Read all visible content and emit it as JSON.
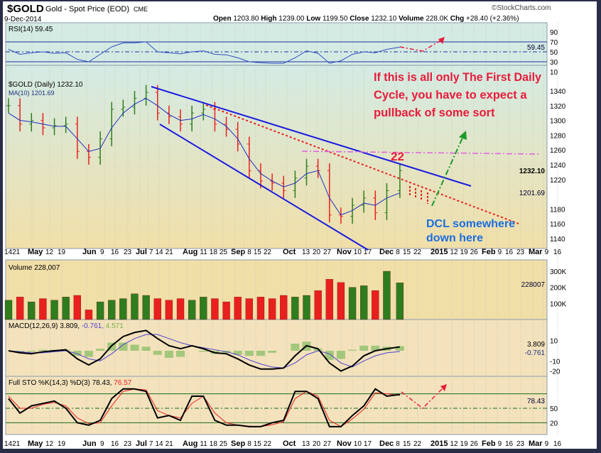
{
  "header": {
    "symbol": "$GOLD",
    "name": "Gold - Spot Price (EOD)",
    "exchange": "CME",
    "date": "9-Dec-2014",
    "brand": "©StockCharts.com",
    "open_label": "Open",
    "open": "1203.80",
    "high_label": "High",
    "high": "1239.00",
    "low_label": "Low",
    "low": "1199.50",
    "close_label": "Close",
    "close": "1232.10",
    "volume_label": "Volume",
    "volume": "228.0K",
    "chg_label": "Chg",
    "chg": "+28.40 (+2.36%)"
  },
  "chart_data": {
    "type": "line",
    "panels": {
      "rsi": {
        "label": "RSI(14) 59.45",
        "ticks": [
          90,
          70,
          50,
          30,
          10
        ],
        "last": "59.45",
        "ylim": [
          0,
          100
        ]
      },
      "price": {
        "label": "$GOLD (Daily) 1232.10",
        "ma_label": "MA(10) 1201.69",
        "ticks": [
          1340,
          1320,
          1300,
          1280,
          1260,
          1240,
          1220,
          1180,
          1160,
          1140
        ],
        "last": "1232.10",
        "ma_last": "1201.69",
        "ylim": [
          1125,
          1360
        ]
      },
      "volume": {
        "label": "Volume 228,007",
        "ticks": [
          "300K",
          "200K",
          "100K"
        ],
        "last": "228007"
      },
      "macd": {
        "label": "MACD(12,26,9) 3.809,",
        "signal_label": "-0.761,",
        "hist_label": "4.571",
        "ticks": [
          10,
          -10,
          -20
        ],
        "last": "3.809",
        "signal_last": "-0.761"
      },
      "sto": {
        "label": "Full STO %K(14,3) %D(3) 78.43,",
        "d_label": "76.57",
        "ticks": [
          50,
          20
        ],
        "last": "78.43"
      }
    },
    "x_tick_labels": [
      "1421",
      "May",
      "12",
      "19",
      "Jun",
      "9",
      "16",
      "23",
      "Jul",
      "7",
      "14",
      "21",
      "Aug",
      "11",
      "18",
      "25",
      "Sep",
      "8",
      "15",
      "22",
      "Oct",
      "13",
      "20",
      "27",
      "Nov",
      "10",
      "17",
      "Dec",
      "8",
      "15",
      "22",
      "2015",
      "12",
      "19",
      "26",
      "Feb",
      "9",
      "16",
      "23",
      "Mar",
      "9",
      "16"
    ],
    "x_bold": [
      "May",
      "Jun",
      "Jul",
      "Aug",
      "Sep",
      "Oct",
      "Nov",
      "Dec",
      "2015",
      "Feb",
      "Mar"
    ],
    "dates": [
      "2014-04-14",
      "2014-04-21",
      "2014-04-28",
      "2014-05-05",
      "2014-05-12",
      "2014-05-19",
      "2014-05-26",
      "2014-06-02",
      "2014-06-09",
      "2014-06-16",
      "2014-06-23",
      "2014-06-30",
      "2014-07-07",
      "2014-07-14",
      "2014-07-21",
      "2014-07-28",
      "2014-08-04",
      "2014-08-11",
      "2014-08-18",
      "2014-08-25",
      "2014-09-01",
      "2014-09-08",
      "2014-09-15",
      "2014-09-22",
      "2014-09-29",
      "2014-10-06",
      "2014-10-13",
      "2014-10-20",
      "2014-10-27",
      "2014-11-03",
      "2014-11-10",
      "2014-11-17",
      "2014-11-24",
      "2014-12-01",
      "2014-12-09"
    ],
    "close": [
      1320,
      1295,
      1300,
      1290,
      1293,
      1295,
      1258,
      1250,
      1275,
      1315,
      1318,
      1330,
      1338,
      1310,
      1305,
      1295,
      1310,
      1315,
      1295,
      1288,
      1268,
      1232,
      1218,
      1215,
      1205,
      1222,
      1238,
      1232,
      1172,
      1170,
      1185,
      1195,
      1175,
      1205,
      1232.1
    ],
    "ma10": [
      1310,
      1300,
      1298,
      1295,
      1292,
      1292,
      1275,
      1258,
      1262,
      1290,
      1310,
      1322,
      1330,
      1320,
      1308,
      1300,
      1302,
      1308,
      1302,
      1292,
      1275,
      1248,
      1228,
      1218,
      1210,
      1215,
      1228,
      1232,
      1195,
      1172,
      1178,
      1188,
      1185,
      1195,
      1201.69
    ],
    "volume_k": [
      120,
      140,
      110,
      130,
      120,
      140,
      150,
      60,
      110,
      120,
      130,
      160,
      150,
      130,
      120,
      130,
      120,
      140,
      130,
      110,
      140,
      130,
      140,
      130,
      150,
      140,
      150,
      180,
      250,
      230,
      200,
      210,
      180,
      300,
      228
    ],
    "rsi": [
      55,
      45,
      48,
      50,
      47,
      48,
      35,
      30,
      45,
      60,
      68,
      68,
      70,
      50,
      48,
      46,
      50,
      52,
      45,
      44,
      38,
      30,
      28,
      27,
      27,
      38,
      52,
      47,
      27,
      32,
      45,
      50,
      48,
      55,
      59.45
    ],
    "macd": [
      0,
      -2,
      -3,
      -1,
      0,
      1,
      -8,
      -14,
      -8,
      5,
      14,
      18,
      20,
      12,
      5,
      2,
      5,
      2,
      -2,
      -3,
      -8,
      -14,
      -18,
      -18,
      -17,
      -5,
      5,
      2,
      -12,
      -20,
      -15,
      -5,
      0,
      2,
      3.809
    ],
    "signal": [
      0,
      -1,
      -2,
      -2,
      -1,
      0,
      -3,
      -8,
      -10,
      -3,
      6,
      12,
      16,
      16,
      12,
      8,
      5,
      3,
      1,
      -1,
      -4,
      -9,
      -13,
      -16,
      -17,
      -12,
      -4,
      0,
      -3,
      -12,
      -16,
      -10,
      -5,
      -2,
      -0.761
    ],
    "sto_k": [
      70,
      40,
      55,
      60,
      65,
      50,
      20,
      15,
      25,
      70,
      90,
      90,
      85,
      30,
      35,
      25,
      75,
      75,
      25,
      15,
      15,
      12,
      12,
      20,
      25,
      85,
      85,
      70,
      12,
      12,
      35,
      55,
      90,
      75,
      78.43
    ],
    "sto_d": [
      75,
      50,
      50,
      58,
      62,
      55,
      30,
      18,
      20,
      55,
      85,
      90,
      88,
      45,
      35,
      30,
      60,
      75,
      40,
      20,
      15,
      13,
      12,
      16,
      22,
      70,
      85,
      75,
      25,
      12,
      28,
      48,
      82,
      80,
      76.57
    ],
    "annotations": {
      "text1": "If this is all only The First Daily",
      "text2": "Cycle, you have to expect a",
      "text3": "pullback of some sort",
      "count": "22",
      "dcl1": "DCL somewhere",
      "dcl2": "down here"
    },
    "colors": {
      "up": "#2e7d1e",
      "down": "#e8201e",
      "trendline": "#1a1ae0",
      "annotation_red": "#e81c3c",
      "annotation_blue": "#1a6ee0",
      "projection_green": "#1a9a2a",
      "resistance": "#e060e0"
    }
  }
}
